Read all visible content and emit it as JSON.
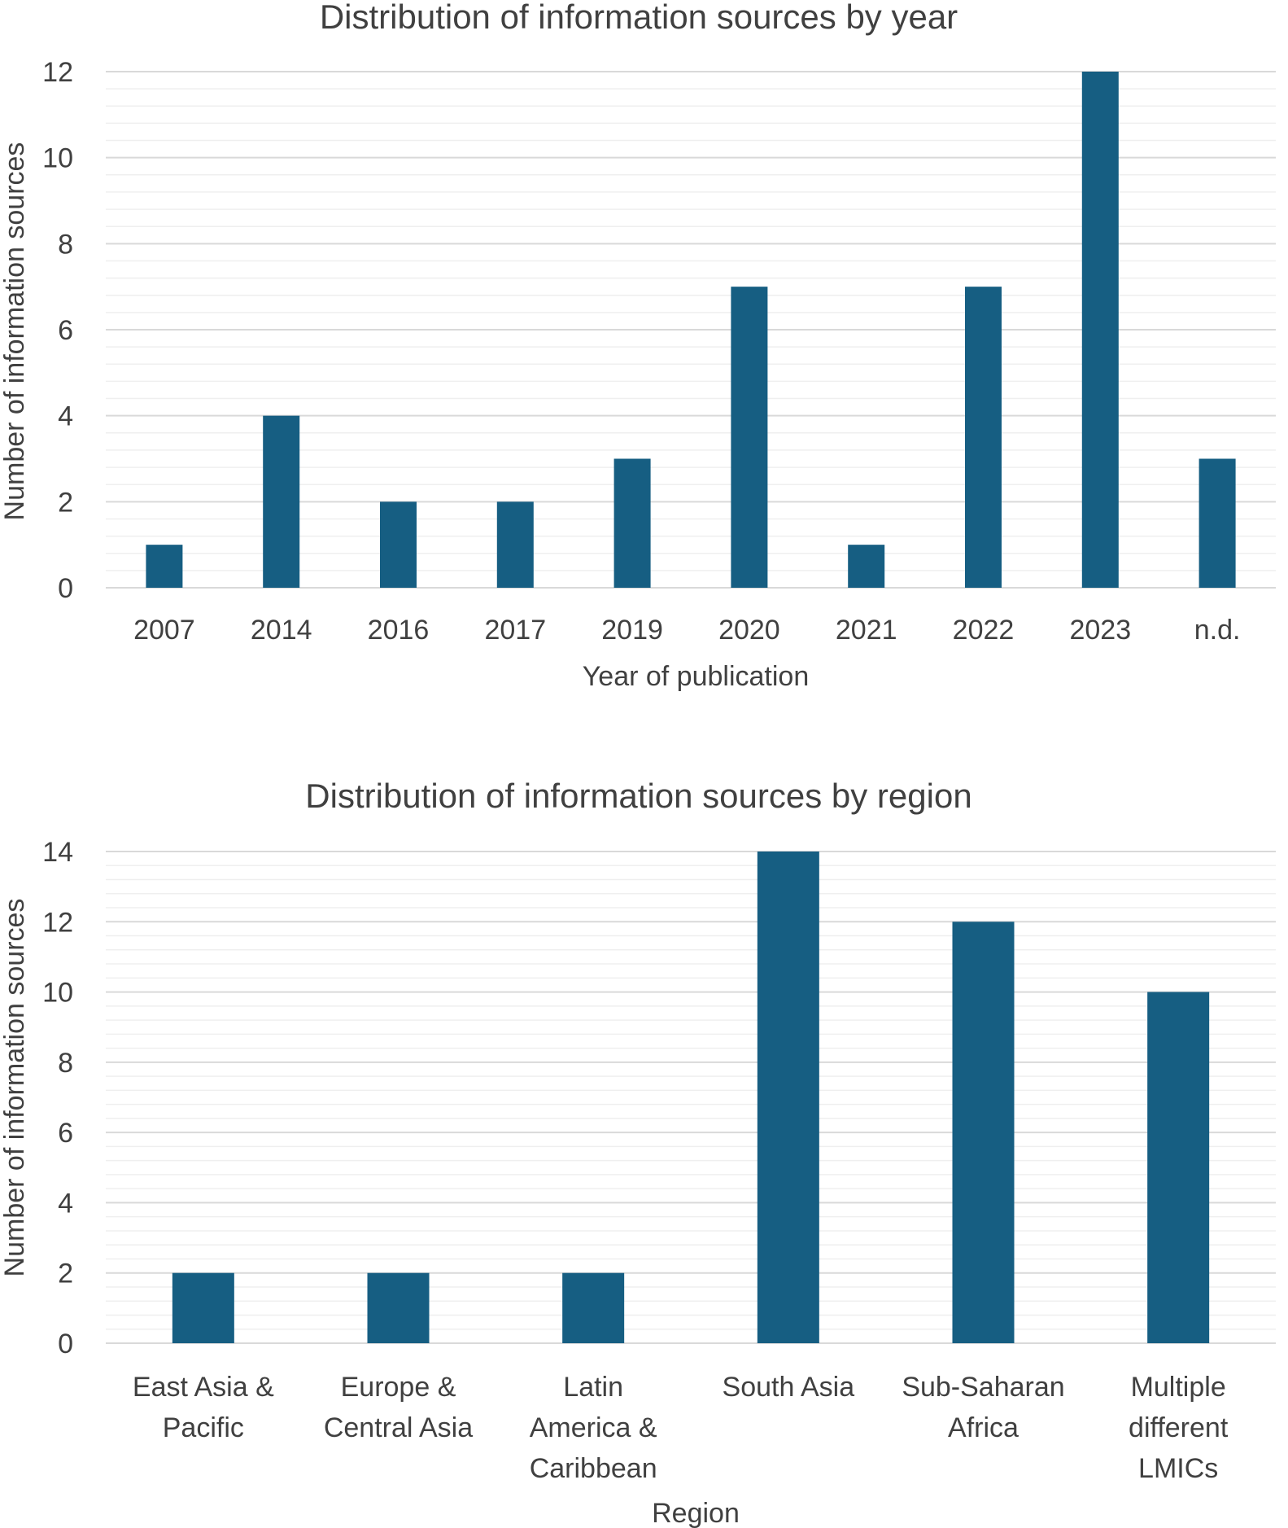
{
  "colors": {
    "bar": "#165e82",
    "major_grid": "#d9d9d9",
    "minor_grid": "#efefef",
    "text": "#404040"
  },
  "chart_data": [
    {
      "type": "bar",
      "title": "Distribution of information sources by year",
      "xlabel": "Year of publication",
      "ylabel": "Number of information sources",
      "categories": [
        [
          "2007"
        ],
        [
          "2014"
        ],
        [
          "2016"
        ],
        [
          "2017"
        ],
        [
          "2019"
        ],
        [
          "2020"
        ],
        [
          "2021"
        ],
        [
          "2022"
        ],
        [
          "2023"
        ],
        [
          "n.d."
        ]
      ],
      "values": [
        1,
        4,
        2,
        2,
        3,
        7,
        1,
        7,
        12,
        3
      ],
      "ylim": [
        0,
        12
      ],
      "y_ticks": [
        0,
        2,
        4,
        6,
        8,
        10,
        12
      ],
      "y_minor_step": 0.4,
      "grid": true,
      "legend": "none"
    },
    {
      "type": "bar",
      "title": "Distribution of information sources by region",
      "xlabel": "Region",
      "ylabel": "Number of information sources",
      "categories": [
        [
          "East Asia &",
          "Pacific"
        ],
        [
          "Europe &",
          "Central Asia"
        ],
        [
          "Latin",
          "America &",
          "Caribbean"
        ],
        [
          "South Asia"
        ],
        [
          "Sub-Saharan",
          "Africa"
        ],
        [
          "Multiple",
          "different",
          "LMICs"
        ]
      ],
      "values": [
        2,
        2,
        2,
        14,
        12,
        10
      ],
      "ylim": [
        0,
        14
      ],
      "y_ticks": [
        0,
        2,
        4,
        6,
        8,
        10,
        12,
        14
      ],
      "y_minor_step": 0.4,
      "grid": true,
      "legend": "none"
    }
  ]
}
